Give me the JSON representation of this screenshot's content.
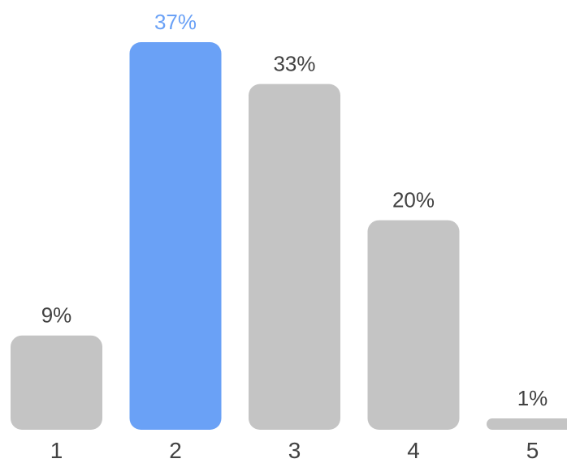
{
  "chart_data": {
    "type": "bar",
    "categories": [
      "1",
      "2",
      "3",
      "4",
      "5"
    ],
    "values": [
      9,
      37,
      33,
      20,
      1
    ],
    "value_labels": [
      "9%",
      "37%",
      "33%",
      "20%",
      "1%"
    ],
    "highlighted_category": "2",
    "title": "",
    "xlabel": "",
    "ylabel": "",
    "ylim": [
      0,
      37
    ],
    "grid": false,
    "legend": "none"
  },
  "colors": {
    "bar_default": "#c4c4c4",
    "bar_highlight": "#6aa1f6",
    "label_default": "#424242",
    "label_highlight": "#6aa1f6",
    "tick_text": "#424242",
    "background": "#ffffff"
  }
}
